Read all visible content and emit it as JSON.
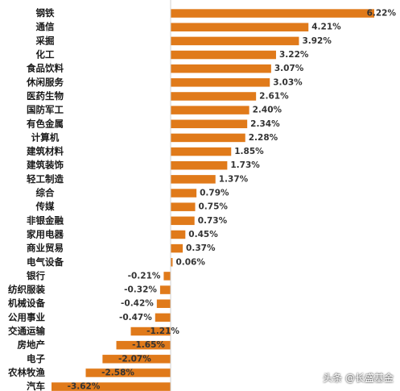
{
  "watermark": "头条 @长盛基金",
  "chart_data": {
    "type": "bar",
    "orientation": "horizontal",
    "title": "",
    "xlabel": "",
    "ylabel": "",
    "grid": false,
    "legend": "none",
    "bar_color": "#E07A1A",
    "xlim": [
      -3.62,
      6.22
    ],
    "categories": [
      "钢铁",
      "通信",
      "采掘",
      "化工",
      "食品饮料",
      "休闲服务",
      "医药生物",
      "国防军工",
      "有色金属",
      "计算机",
      "建筑材料",
      "建筑装饰",
      "轻工制造",
      "综合",
      "传媒",
      "非银金融",
      "家用电器",
      "商业贸易",
      "电气设备",
      "银行",
      "纺织服装",
      "机械设备",
      "公用事业",
      "交通运输",
      "房地产",
      "电子",
      "农林牧渔",
      "汽车"
    ],
    "values": [
      6.22,
      4.21,
      3.92,
      3.22,
      3.07,
      3.03,
      2.61,
      2.4,
      2.34,
      2.28,
      1.85,
      1.73,
      1.37,
      0.79,
      0.75,
      0.73,
      0.45,
      0.37,
      0.06,
      -0.21,
      -0.32,
      -0.42,
      -0.47,
      -1.21,
      -1.65,
      -2.07,
      -2.58,
      -3.62
    ],
    "value_labels": [
      "6.22%",
      "4.21%",
      "3.92%",
      "3.22%",
      "3.07%",
      "3.03%",
      "2.61%",
      "2.40%",
      "2.34%",
      "2.28%",
      "1.85%",
      "1.73%",
      "1.37%",
      "0.79%",
      "0.75%",
      "0.73%",
      "0.45%",
      "0.37%",
      "0.06%",
      "-0.21%",
      "-0.32%",
      "-0.42%",
      "-0.47%",
      "-1.21%",
      "-1.65%",
      "-2.07%",
      "-2.58%",
      "-3.62%"
    ]
  }
}
